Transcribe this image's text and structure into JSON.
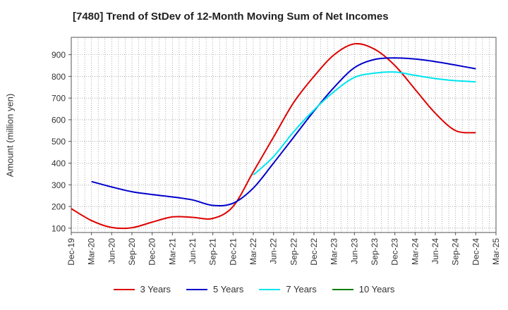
{
  "chart_data": {
    "type": "line",
    "title": "[7480]  Trend of StDev of 12-Month Moving Sum of Net Incomes",
    "ylabel": "Amount (million yen)",
    "xlabel": "",
    "ylim": [
      80,
      980
    ],
    "yticks": [
      100,
      200,
      300,
      400,
      500,
      600,
      700,
      800,
      900
    ],
    "x_tick_labels": [
      "Dec-19",
      "Mar-20",
      "Jun-20",
      "Sep-20",
      "Dec-20",
      "Mar-21",
      "Jun-21",
      "Sep-21",
      "Dec-21",
      "Mar-22",
      "Jun-22",
      "Sep-22",
      "Dec-22",
      "Mar-23",
      "Jun-23",
      "Sep-23",
      "Dec-23",
      "Mar-24",
      "Jun-24",
      "Sep-24",
      "Dec-24",
      "Mar-25"
    ],
    "grid": true,
    "legend_position": "bottom",
    "series": [
      {
        "name": "3 Years",
        "color": "#dd0000",
        "x": [
          "Dec-19",
          "Mar-20",
          "Jun-20",
          "Sep-20",
          "Dec-20",
          "Mar-21",
          "Jun-21",
          "Sep-21",
          "Dec-21",
          "Mar-22",
          "Jun-22",
          "Sep-22",
          "Dec-22",
          "Mar-23",
          "Jun-23",
          "Sep-23",
          "Dec-23",
          "Mar-24",
          "Jun-24",
          "Sep-24",
          "Dec-24"
        ],
        "values": [
          190,
          135,
          103,
          102,
          128,
          152,
          150,
          145,
          200,
          360,
          520,
          680,
          800,
          900,
          950,
          925,
          850,
          740,
          630,
          550,
          540
        ]
      },
      {
        "name": "5 Years",
        "color": "#0000cc",
        "x": [
          "Mar-20",
          "Jun-20",
          "Sep-20",
          "Dec-20",
          "Mar-21",
          "Jun-21",
          "Sep-21",
          "Dec-21",
          "Mar-22",
          "Jun-22",
          "Sep-22",
          "Dec-22",
          "Mar-23",
          "Jun-23",
          "Sep-23",
          "Dec-23",
          "Mar-24",
          "Jun-24",
          "Sep-24",
          "Dec-24"
        ],
        "values": [
          315,
          290,
          268,
          255,
          244,
          230,
          205,
          215,
          285,
          400,
          520,
          640,
          750,
          840,
          878,
          885,
          880,
          868,
          852,
          835
        ]
      },
      {
        "name": "7 Years",
        "color": "#00e5ee",
        "x": [
          "Mar-22",
          "Jun-22",
          "Sep-22",
          "Dec-22",
          "Mar-23",
          "Jun-23",
          "Sep-23",
          "Dec-23",
          "Mar-24",
          "Jun-24",
          "Sep-24",
          "Dec-24"
        ],
        "values": [
          345,
          430,
          545,
          645,
          730,
          795,
          815,
          820,
          805,
          790,
          780,
          775
        ]
      },
      {
        "name": "10 Years",
        "color": "#008000",
        "x": [],
        "values": []
      }
    ]
  }
}
